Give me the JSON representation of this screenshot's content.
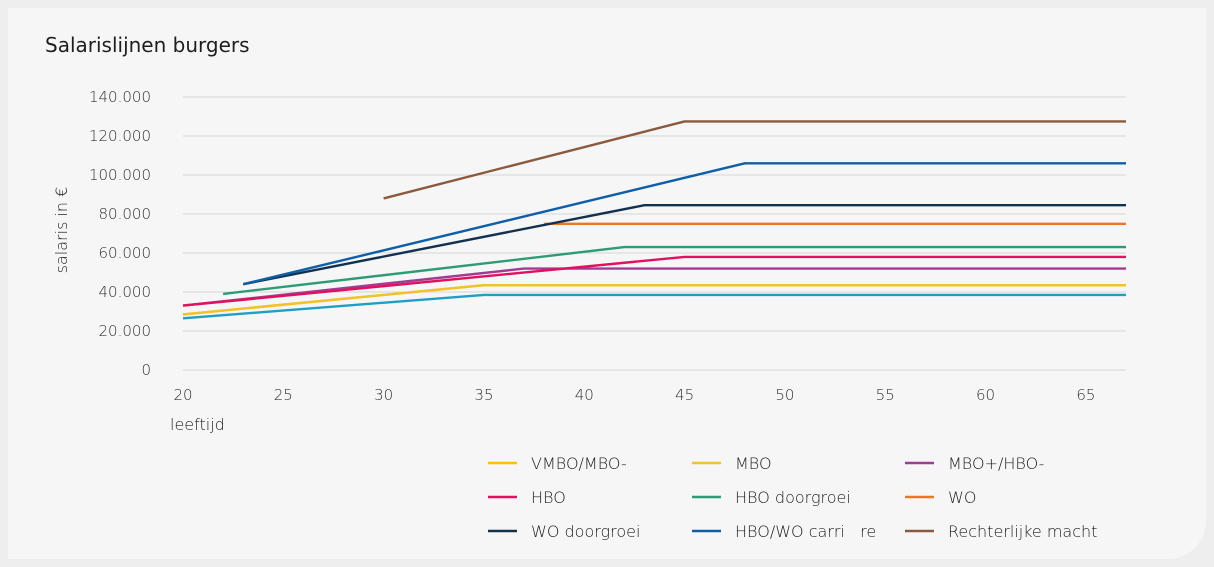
{
  "chart_data": {
    "type": "line",
    "title": "Salarislijnen burgers",
    "xlabel": "leeftijd",
    "ylabel": "salaris in €",
    "xlim": [
      20,
      67
    ],
    "ylim": [
      0,
      140000
    ],
    "x_ticks": [
      20,
      25,
      30,
      35,
      40,
      45,
      50,
      55,
      60,
      65
    ],
    "y_ticks": [
      0,
      20000,
      40000,
      60000,
      80000,
      100000,
      120000,
      140000
    ],
    "y_tick_labels": [
      "0",
      "20.000",
      "40.000",
      "60.000",
      "80.000",
      "100.000",
      "120.000",
      "140.000"
    ],
    "grid": "horizontal",
    "legend_position": "bottom",
    "series": [
      {
        "name": "VMBO/MBO-",
        "color": "#ffc000",
        "points": [
          [
            20,
            28500
          ],
          [
            35,
            43500
          ],
          [
            67,
            43500
          ]
        ]
      },
      {
        "name": "MBO",
        "color": "#f2c12e",
        "points": [
          [
            20,
            28500
          ],
          [
            35,
            43500
          ],
          [
            67,
            43500
          ]
        ]
      },
      {
        "name": "MBO+/HBO-",
        "color": "#a23c93",
        "points": [
          [
            20,
            33000
          ],
          [
            37,
            52000
          ],
          [
            67,
            52000
          ]
        ]
      },
      {
        "name": "HBO",
        "color": "#e0115f",
        "points": [
          [
            20,
            33000
          ],
          [
            45,
            58000
          ],
          [
            67,
            58000
          ]
        ]
      },
      {
        "name": "HBO doorgroei",
        "color": "#2e9b76",
        "points": [
          [
            22,
            39000
          ],
          [
            42,
            63000
          ],
          [
            67,
            63000
          ]
        ]
      },
      {
        "name": "WO",
        "color": "#ee7523",
        "points": [
          [
            38,
            75000
          ],
          [
            67,
            75000
          ]
        ]
      },
      {
        "name": "WO doorgroei",
        "color": "#12314f",
        "points": [
          [
            23,
            44000
          ],
          [
            43,
            84500
          ],
          [
            67,
            84500
          ]
        ]
      },
      {
        "name": "HBO/WO carri   re",
        "color": "#0f5ea8",
        "points": [
          [
            23,
            44000
          ],
          [
            48,
            106000
          ],
          [
            67,
            106000
          ]
        ]
      },
      {
        "name": "Rechterlijke macht",
        "color": "#8b5a3e",
        "points": [
          [
            30,
            88000
          ],
          [
            45,
            127500
          ],
          [
            67,
            127500
          ]
        ]
      },
      {
        "name": "",
        "color": "#1f9fc4",
        "points": [
          [
            20,
            26500
          ],
          [
            35,
            38500
          ],
          [
            67,
            38500
          ]
        ]
      }
    ]
  }
}
